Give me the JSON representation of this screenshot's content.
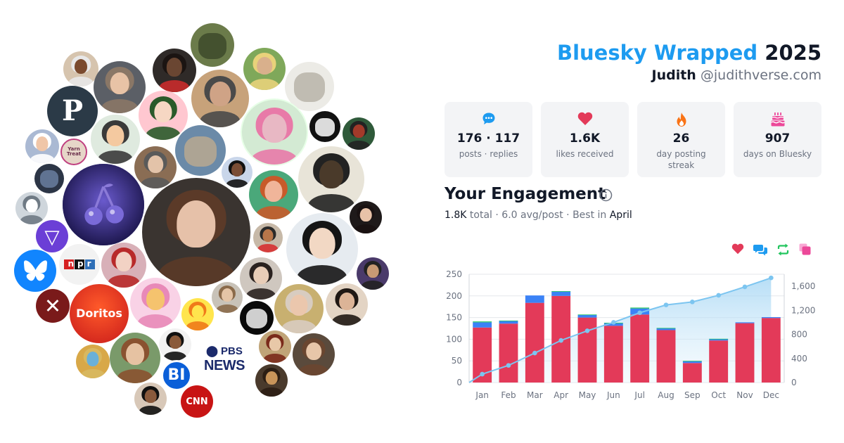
{
  "header": {
    "title_brand": "Bluesky Wrapped",
    "title_year": "2025",
    "display_name": "Judith",
    "handle": "@judithverse.com"
  },
  "stats": [
    {
      "icon": "speech-bubble-icon",
      "value": "176 · 117",
      "label": "posts · replies"
    },
    {
      "icon": "heart-icon",
      "value": "1.6K",
      "label": "likes received"
    },
    {
      "icon": "flame-icon",
      "value": "26",
      "label": "day posting streak"
    },
    {
      "icon": "cake-icon",
      "value": "907",
      "label": "days on Bluesky"
    }
  ],
  "engagement": {
    "title": "Your Engagement",
    "total_value": "1.8K",
    "total_word": "total",
    "avg_text": "6.0 avg/post",
    "best_prefix": "Best in",
    "best_month": "April",
    "legend": [
      "likes-icon",
      "replies-icon",
      "reposts-icon",
      "quotes-icon"
    ]
  },
  "avatars": [
    {
      "label": "P"
    },
    {
      "label": "Yarn Treat"
    },
    {
      "label": "npr"
    },
    {
      "label": "Doritos"
    },
    {
      "label": "BI"
    },
    {
      "label": "CNN"
    },
    {
      "label": "PBS"
    },
    {
      "label": "NEWS"
    }
  ],
  "colors": {
    "brand": "#1d9bf0",
    "likes": "#e33a59",
    "replies": "#3b82f6",
    "reposts": "#22c55e",
    "quotes": "#ec4899",
    "cumulative": "#7cc5f0"
  },
  "chart_data": {
    "type": "bar",
    "categories": [
      "Jan",
      "Feb",
      "Mar",
      "Apr",
      "May",
      "Jun",
      "Jul",
      "Aug",
      "Sep",
      "Oct",
      "Nov",
      "Dec"
    ],
    "series": [
      {
        "values": [
          127,
          136,
          184,
          200,
          150,
          131,
          157,
          121,
          45,
          97,
          137,
          149
        ]
      },
      {
        "values": [
          12,
          6,
          17,
          10,
          6,
          6,
          14,
          4,
          4,
          3,
          2,
          2
        ]
      },
      {
        "values": [
          2,
          1,
          0,
          1,
          1,
          1,
          2,
          1,
          1,
          1,
          0,
          0
        ]
      },
      {
        "values": [
          0,
          0,
          0,
          0,
          0,
          0,
          0,
          0,
          0,
          0,
          0,
          0
        ]
      }
    ],
    "cumulative": [
      140,
      285,
      490,
      700,
      860,
      1000,
      1160,
      1290,
      1340,
      1450,
      1590,
      1740
    ],
    "ylim_left": [
      0,
      250
    ],
    "ylim_right": [
      0,
      1800
    ],
    "yticks_left": [
      0,
      50,
      100,
      150,
      200,
      250
    ],
    "yticks_right": [
      0,
      400,
      800,
      1200,
      1600
    ],
    "ytick_labels_right": [
      "0",
      "400",
      "800",
      "1,200",
      "1,600"
    ],
    "grid": true
  }
}
